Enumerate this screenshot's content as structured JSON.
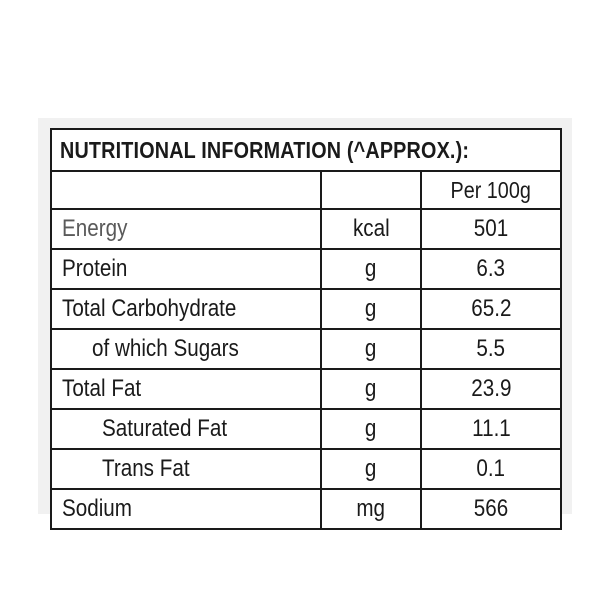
{
  "label": {
    "title": "NUTRITIONAL INFORMATION (^APPROX.):",
    "header": {
      "name": "",
      "unit": "",
      "per_serving": "Per 100g"
    },
    "rows": [
      {
        "name": "Energy",
        "unit": "kcal",
        "value": "501"
      },
      {
        "name": "Protein",
        "unit": "g",
        "value": "6.3"
      },
      {
        "name": "Total Carbohydrate",
        "unit": "g",
        "value": "65.2"
      },
      {
        "name": "of which Sugars",
        "unit": "g",
        "value": "5.5"
      },
      {
        "name": "Total Fat",
        "unit": "g",
        "value": "23.9"
      },
      {
        "name": "Saturated Fat",
        "unit": "g",
        "value": "11.1"
      },
      {
        "name": "Trans Fat",
        "unit": "g",
        "value": "0.1"
      },
      {
        "name": "Sodium",
        "unit": "mg",
        "value": "566"
      }
    ]
  }
}
